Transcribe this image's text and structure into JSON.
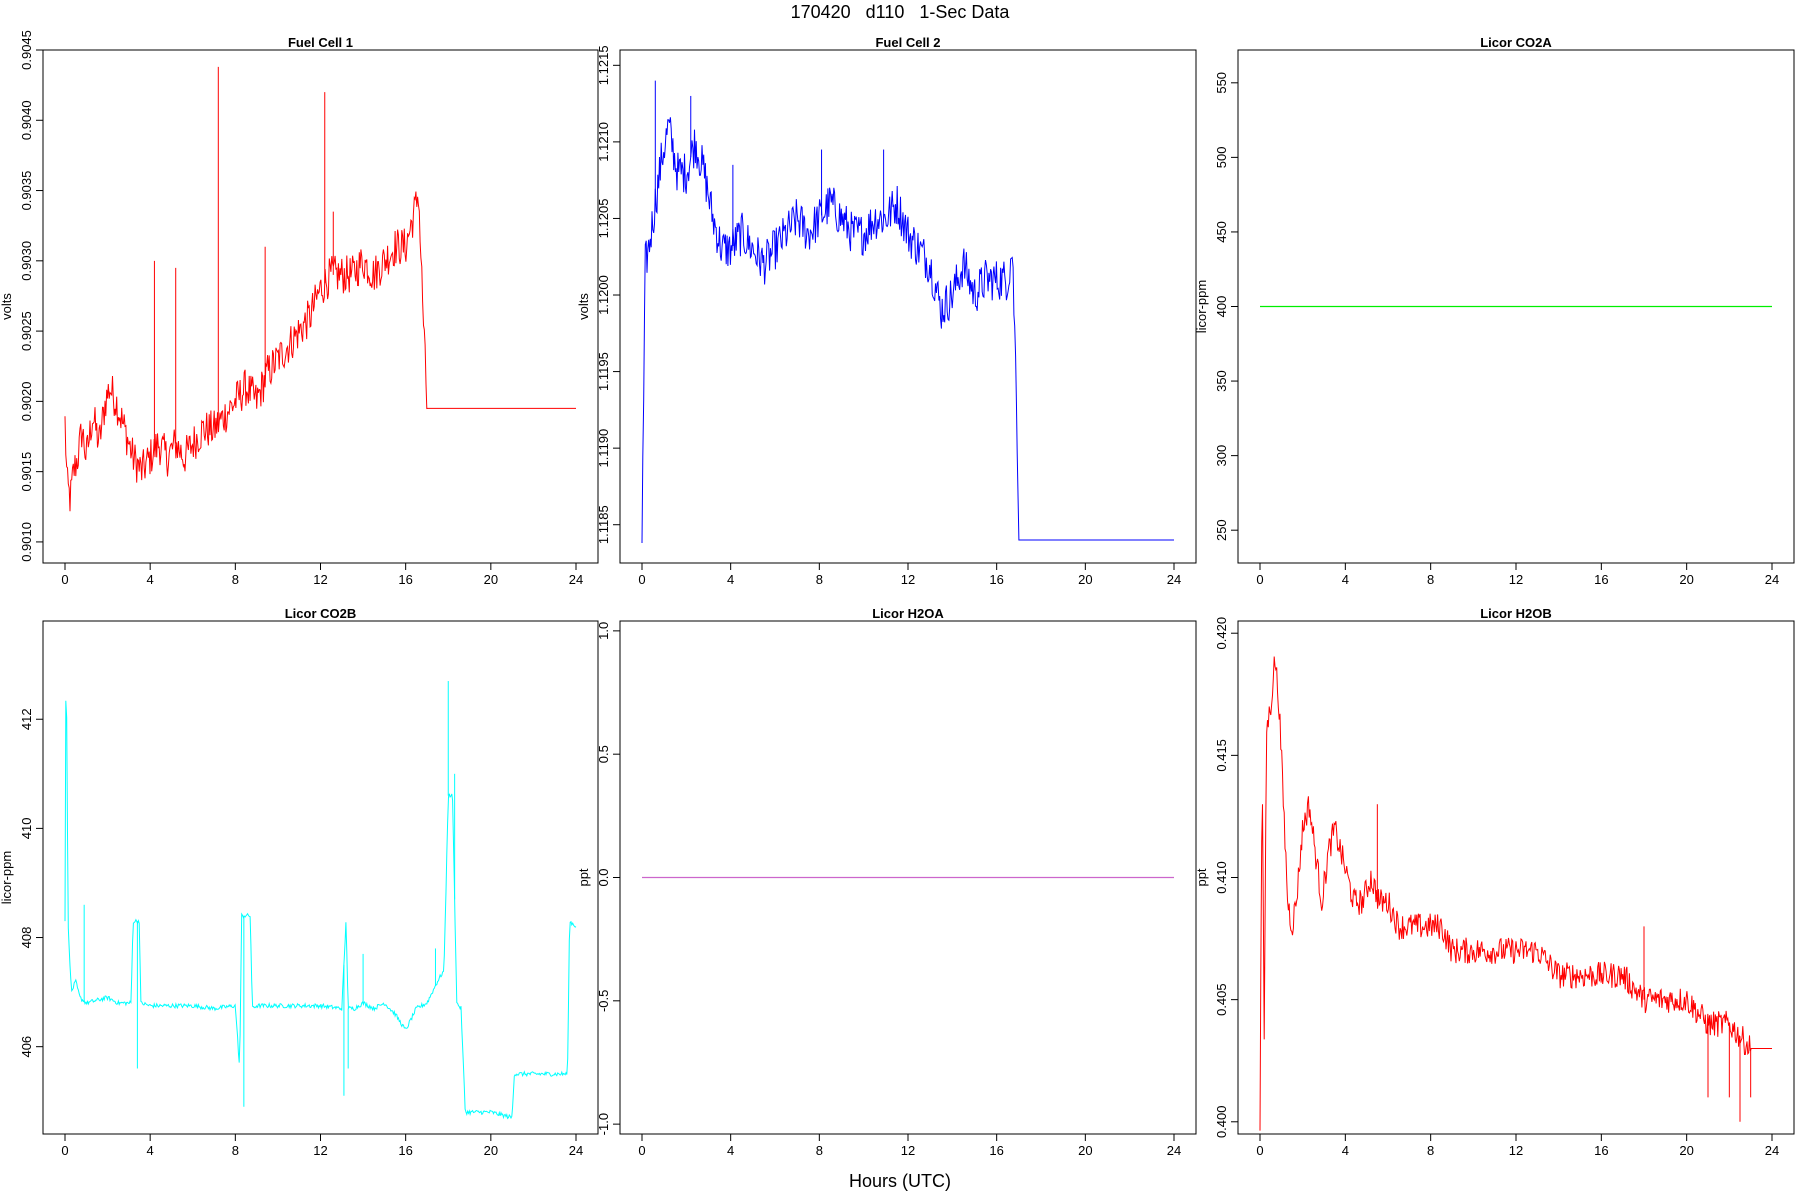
{
  "title": "170420   d110   1-Sec Data",
  "xlabel": "Hours (UTC)",
  "chart_data": [
    {
      "type": "line",
      "title": "Fuel Cell 1",
      "ylabel": "volts",
      "color": "#ff0000",
      "xlim": [
        0,
        24
      ],
      "ylim": [
        0.90085,
        0.9045
      ],
      "xticks": [
        "0",
        "4",
        "8",
        "12",
        "16",
        "20",
        "24"
      ],
      "yticks": [
        "0.9010",
        "0.9015",
        "0.9020",
        "0.9025",
        "0.9030",
        "0.9035",
        "0.9040",
        "0.9045"
      ],
      "series": [
        {
          "x": [
            0,
            0.1,
            0.25,
            0.4,
            0.6,
            0.8,
            1,
            1.3,
            1.6,
            1.9,
            2.1,
            2.4,
            2.8,
            3.2,
            3.6,
            4,
            4.4,
            4.8,
            5.2,
            5.6,
            6,
            6.5,
            7,
            7.5,
            8,
            8.5,
            9,
            9.5,
            10,
            10.5,
            11,
            11.5,
            12,
            12.5,
            13,
            13.5,
            14,
            14.5,
            15,
            15.5,
            16,
            16.5,
            16.6,
            16.8,
            17,
            20,
            24
          ],
          "y": [
            0.90185,
            0.9014,
            0.9013,
            0.9015,
            0.9016,
            0.9018,
            0.9016,
            0.9019,
            0.9017,
            0.902,
            0.9021,
            0.902,
            0.9018,
            0.9016,
            0.9015,
            0.9016,
            0.9017,
            0.9016,
            0.9017,
            0.9016,
            0.9017,
            0.9018,
            0.9018,
            0.9019,
            0.902,
            0.9021,
            0.902,
            0.9022,
            0.9023,
            0.9024,
            0.9025,
            0.9026,
            0.9028,
            0.9029,
            0.9029,
            0.9029,
            0.903,
            0.9029,
            0.903,
            0.9031,
            0.9031,
            0.9034,
            0.9035,
            0.9027,
            0.90195,
            0.90195,
            0.90195
          ],
          "spikes": [
            [
              4.2,
              0.903
            ],
            [
              5.2,
              0.90295
            ],
            [
              7.2,
              0.90438
            ],
            [
              9.4,
              0.9031
            ],
            [
              12.2,
              0.9042
            ],
            [
              12.6,
              0.90335
            ]
          ],
          "noise": 0.00028
        }
      ]
    },
    {
      "type": "line",
      "title": "Fuel Cell 2",
      "ylabel": "volts",
      "color": "#0000ff",
      "xlim": [
        0,
        24
      ],
      "ylim": [
        1.11825,
        1.1216
      ],
      "xticks": [
        "0",
        "4",
        "8",
        "12",
        "16",
        "20",
        "24"
      ],
      "yticks": [
        "1.1185",
        "1.1190",
        "1.1195",
        "1.1200",
        "1.1205",
        "1.1210",
        "1.1215"
      ],
      "series": [
        {
          "x": [
            0,
            0.15,
            0.3,
            0.6,
            0.9,
            1.2,
            1.6,
            2,
            2.4,
            2.8,
            3.2,
            3.6,
            4,
            4.5,
            5,
            5.5,
            6,
            6.5,
            7,
            7.5,
            8,
            8.5,
            9,
            9.5,
            10,
            10.5,
            11,
            11.5,
            12,
            12.5,
            13,
            13.5,
            14,
            14.5,
            15,
            15.5,
            16,
            16.5,
            16.7,
            16.9,
            17,
            20,
            24
          ],
          "y": [
            1.1184,
            1.1202,
            1.1203,
            1.1206,
            1.1209,
            1.1211,
            1.1208,
            1.1208,
            1.121,
            1.1208,
            1.1205,
            1.1203,
            1.1203,
            1.1204,
            1.1203,
            1.1202,
            1.1203,
            1.1204,
            1.1205,
            1.1204,
            1.1205,
            1.1206,
            1.1205,
            1.1204,
            1.1204,
            1.1205,
            1.1205,
            1.1206,
            1.1204,
            1.1203,
            1.1202,
            1.1199,
            1.12,
            1.1202,
            1.12,
            1.1201,
            1.1201,
            1.1201,
            1.1203,
            1.11935,
            1.1184,
            1.1184,
            1.1184
          ],
          "spikes": [
            [
              0.6,
              1.1214
            ],
            [
              2.2,
              1.1213
            ],
            [
              4.1,
              1.12085
            ],
            [
              8.1,
              1.12095
            ],
            [
              10.9,
              1.12095
            ]
          ],
          "noise": 0.00028
        }
      ]
    },
    {
      "type": "line",
      "title": "Licor CO2A",
      "ylabel": "licor-ppm",
      "color": "#00ee00",
      "xlim": [
        0,
        24
      ],
      "ylim": [
        228,
        572
      ],
      "xticks": [
        "0",
        "4",
        "8",
        "12",
        "16",
        "20",
        "24"
      ],
      "yticks": [
        "250",
        "300",
        "350",
        "400",
        "450",
        "500",
        "550"
      ],
      "series": [
        {
          "x": [
            0,
            24
          ],
          "y": [
            400,
            400
          ],
          "spikes": [],
          "noise": 0
        }
      ]
    },
    {
      "type": "line",
      "title": "Licor CO2B",
      "ylabel": "licor-ppm",
      "color": "#00ffff",
      "xlim": [
        0,
        24
      ],
      "ylim": [
        404.4,
        413.8
      ],
      "xticks": [
        "0",
        "4",
        "8",
        "12",
        "16",
        "20",
        "24"
      ],
      "yticks": [
        "406",
        "408",
        "410",
        "412"
      ],
      "series": [
        {
          "x": [
            0,
            0.05,
            0.15,
            0.3,
            0.5,
            0.7,
            1,
            1.5,
            2,
            2.5,
            3.1,
            3.2,
            3.5,
            3.55,
            4,
            5,
            6,
            7,
            8,
            8.2,
            8.3,
            8.7,
            8.8,
            9,
            10,
            11,
            12,
            13,
            13.2,
            13.3,
            13.6,
            14,
            14.5,
            15,
            15.5,
            16,
            16.5,
            17,
            17.5,
            17.8,
            18,
            18.2,
            18.4,
            18.6,
            18.8,
            19,
            20,
            21,
            21.1,
            21.5,
            22,
            23,
            23.6,
            23.7,
            24
          ],
          "y": [
            408.3,
            413.5,
            408.2,
            407.0,
            407.2,
            406.9,
            406.8,
            406.85,
            406.9,
            406.8,
            406.8,
            408.3,
            408.3,
            406.8,
            406.75,
            406.75,
            406.75,
            406.7,
            406.75,
            405.6,
            408.4,
            408.4,
            406.7,
            406.75,
            406.75,
            406.75,
            406.75,
            406.7,
            408.3,
            406.7,
            406.7,
            406.8,
            406.7,
            406.8,
            406.6,
            406.3,
            406.7,
            406.8,
            407.2,
            407.4,
            410.6,
            410.6,
            406.8,
            406.7,
            404.8,
            404.8,
            404.8,
            404.7,
            405.5,
            405.5,
            405.5,
            405.5,
            405.5,
            408.3,
            408.2
          ],
          "spikes": [
            [
              0.9,
              408.6
            ],
            [
              14,
              407.7
            ],
            [
              17.4,
              407.8
            ],
            [
              18.0,
              412.7
            ],
            [
              18.3,
              411.0
            ],
            [
              8.4,
              404.9
            ],
            [
              13.1,
              405.1
            ],
            [
              3.4,
              405.6
            ],
            [
              13.3,
              405.6
            ]
          ],
          "noise": 0.08
        }
      ]
    },
    {
      "type": "line",
      "title": "Licor H2OA",
      "ylabel": "ppt",
      "color": "#cc66cc",
      "xlim": [
        0,
        24
      ],
      "ylim": [
        -1.04,
        1.04
      ],
      "xticks": [
        "0",
        "4",
        "8",
        "12",
        "16",
        "20",
        "24"
      ],
      "yticks": [
        "-1.0",
        "-0.5",
        "0.0",
        "0.5",
        "1.0"
      ],
      "series": [
        {
          "x": [
            0,
            24
          ],
          "y": [
            0,
            0
          ],
          "spikes": [],
          "noise": 0
        }
      ]
    },
    {
      "type": "line",
      "title": "Licor H2OB",
      "ylabel": "ppt",
      "color": "#ff0000",
      "xlim": [
        0,
        24
      ],
      "ylim": [
        0.3995,
        0.4205
      ],
      "xticks": [
        "0",
        "4",
        "8",
        "12",
        "16",
        "20",
        "24"
      ],
      "yticks": [
        "0.400",
        "0.405",
        "0.410",
        "0.415",
        "0.420"
      ],
      "series": [
        {
          "x": [
            0,
            0.1,
            0.2,
            0.3,
            0.5,
            0.7,
            0.9,
            1.1,
            1.3,
            1.5,
            1.7,
            2,
            2.3,
            2.6,
            2.9,
            3.2,
            3.5,
            3.8,
            4.1,
            4.4,
            4.8,
            5.2,
            5.6,
            6,
            6.5,
            7,
            7.5,
            8,
            8.5,
            9,
            9.5,
            10,
            11,
            12,
            13,
            14,
            15,
            16,
            16.5,
            17,
            18,
            19,
            20,
            21,
            22,
            23,
            24
          ],
          "y": [
            0.4,
            0.415,
            0.403,
            0.416,
            0.417,
            0.419,
            0.417,
            0.413,
            0.409,
            0.408,
            0.409,
            0.412,
            0.413,
            0.411,
            0.409,
            0.411,
            0.412,
            0.411,
            0.41,
            0.409,
            0.409,
            0.41,
            0.409,
            0.409,
            0.408,
            0.408,
            0.408,
            0.408,
            0.408,
            0.407,
            0.407,
            0.407,
            0.407,
            0.407,
            0.407,
            0.406,
            0.406,
            0.406,
            0.406,
            0.406,
            0.405,
            0.405,
            0.405,
            0.404,
            0.404,
            0.403,
            0.403
          ],
          "spikes": [
            [
              21,
              0.401
            ],
            [
              22,
              0.401
            ],
            [
              23,
              0.401
            ],
            [
              22.5,
              0.4
            ],
            [
              18,
              0.408
            ],
            [
              5.5,
              0.413
            ]
          ],
          "noise": 0.0011
        }
      ]
    }
  ]
}
